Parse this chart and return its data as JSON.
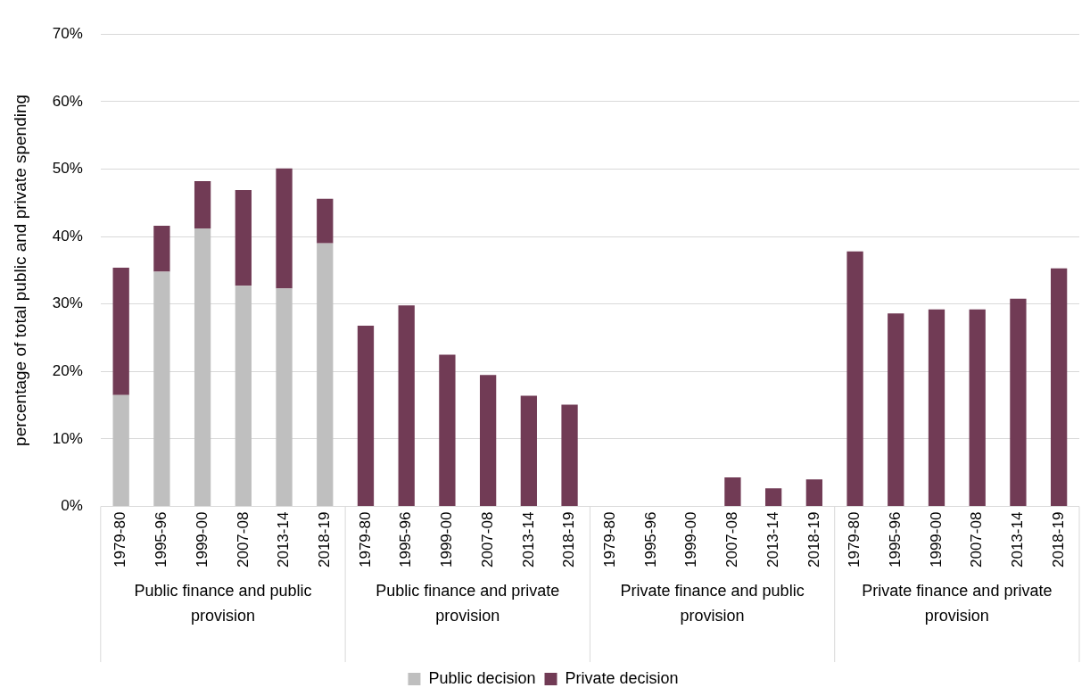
{
  "chart_data": {
    "type": "bar",
    "stacked": true,
    "ylabel": "percentage of total public and private spending",
    "categories": [
      "1979-80",
      "1995-96",
      "1999-00",
      "2007-08",
      "2013-14",
      "2018-19",
      "1979-80",
      "1995-96",
      "1999-00",
      "2007-08",
      "2013-14",
      "2018-19",
      "1979-80",
      "1995-96",
      "1999-00",
      "2007-08",
      "2013-14",
      "2018-19",
      "1979-80",
      "1995-96",
      "1999-00",
      "2007-08",
      "2013-14",
      "2018-19"
    ],
    "series": [
      {
        "name": "Public decision",
        "color": "#bfbfbf",
        "values": [
          16.5,
          34.8,
          41.2,
          32.7,
          32.3,
          39.0,
          0,
          0,
          0,
          0,
          0,
          0,
          0,
          0,
          0,
          0,
          0,
          0,
          0,
          0,
          0,
          0,
          0,
          0
        ]
      },
      {
        "name": "Private decision",
        "color": "#713b55",
        "values": [
          18.9,
          6.8,
          7.0,
          14.2,
          17.8,
          6.6,
          26.8,
          29.8,
          22.5,
          19.5,
          16.4,
          15.1,
          0,
          0,
          0,
          4.3,
          2.7,
          4.0,
          37.8,
          28.6,
          29.2,
          29.2,
          30.8,
          35.3
        ]
      }
    ],
    "annotations": [
      "Public finance and public provision",
      "Public finance and private provision",
      "Private finance and public provision",
      "Private finance and private provision"
    ],
    "ylim": [
      0,
      70
    ],
    "yticks": [
      {
        "value": 0,
        "label": "0%"
      },
      {
        "value": 10,
        "label": "10%"
      },
      {
        "value": 20,
        "label": "20%"
      },
      {
        "value": 30,
        "label": "30%"
      },
      {
        "value": 40,
        "label": "40%"
      },
      {
        "value": 50,
        "label": "50%"
      },
      {
        "value": 60,
        "label": "60%"
      },
      {
        "value": 70,
        "label": "70%"
      }
    ],
    "grid": "y",
    "legend": "bottom"
  }
}
